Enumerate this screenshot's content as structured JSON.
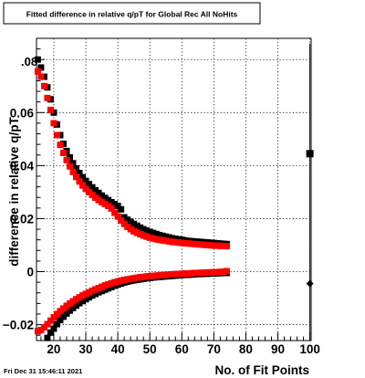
{
  "chart_data": {
    "type": "scatter",
    "title": "Fitted difference in relative q/pT for Global Rec All NoHits",
    "xlabel": "No. of Fit Points",
    "ylabel": "difference in relative q/pT",
    "xlim": [
      14.6,
      100.4
    ],
    "ylim": [
      -0.026,
      0.088
    ],
    "x_ticks": [
      20,
      30,
      40,
      50,
      60,
      70,
      80,
      90,
      100
    ],
    "y_ticks": [
      -0.02,
      0,
      0.02,
      0.04,
      0.06,
      0.08
    ],
    "y_tick_labels": [
      "−0.02",
      "0",
      "0.02",
      "0.04",
      "0.06",
      "0.08"
    ],
    "y_top_label_fragment": ".08",
    "grid": true,
    "timestamp": "Fri Dec 31 15:46:11 2021",
    "series": [
      {
        "color": "#000000",
        "upper_x": [
          15,
          16,
          17,
          18,
          19,
          20,
          21,
          22,
          23,
          24,
          25,
          26,
          27,
          28,
          29,
          30,
          31,
          32,
          33,
          34,
          35,
          36,
          37,
          38,
          39,
          40,
          41,
          42,
          43,
          44,
          45,
          46,
          47,
          48,
          49,
          50,
          51,
          52,
          53,
          54,
          55,
          56,
          57,
          58,
          59,
          60,
          61,
          62,
          63,
          64,
          65,
          66,
          67,
          68,
          69,
          70,
          71,
          72,
          73,
          74
        ],
        "upper_y": [
          0.08,
          0.077,
          0.0735,
          0.0695,
          0.065,
          0.06,
          0.0555,
          0.0515,
          0.0482,
          0.0455,
          0.0431,
          0.0409,
          0.0389,
          0.0372,
          0.0356,
          0.0342,
          0.033,
          0.0318,
          0.0307,
          0.0297,
          0.0287,
          0.0278,
          0.027,
          0.0262,
          0.0255,
          0.0248,
          0.0235,
          0.0205,
          0.0196,
          0.0188,
          0.018,
          0.0173,
          0.0166,
          0.016,
          0.0155,
          0.015,
          0.0146,
          0.0142,
          0.0138,
          0.0135,
          0.0132,
          0.0129,
          0.0126,
          0.0124,
          0.0122,
          0.012,
          0.0118,
          0.0116,
          0.0115,
          0.0114,
          0.0113,
          0.0112,
          0.0111,
          0.011,
          0.0109,
          0.0108,
          0.0107,
          0.0106,
          0.0105,
          0.0104
        ],
        "lower_x": [
          18,
          19,
          20,
          21,
          22,
          23,
          24,
          25,
          26,
          27,
          28,
          29,
          30,
          31,
          32,
          33,
          34,
          35,
          36,
          37,
          38,
          39,
          40,
          41,
          42,
          43,
          44,
          45,
          46,
          47,
          48,
          49,
          50,
          51,
          52,
          53,
          54,
          55,
          56,
          57,
          58,
          59,
          60,
          61,
          62,
          63,
          64,
          65,
          66,
          67,
          68,
          69,
          70,
          71,
          72,
          73,
          74
        ],
        "lower_y": [
          -0.025,
          -0.023,
          -0.0215,
          -0.0198,
          -0.0183,
          -0.017,
          -0.0158,
          -0.0147,
          -0.0137,
          -0.0128,
          -0.0119,
          -0.0111,
          -0.0104,
          -0.0097,
          -0.009,
          -0.0084,
          -0.0078,
          -0.0073,
          -0.0068,
          -0.0063,
          -0.0058,
          -0.0053,
          -0.0049,
          -0.0045,
          -0.0041,
          -0.0038,
          -0.0035,
          -0.0033,
          -0.0031,
          -0.0029,
          -0.0027,
          -0.0025,
          -0.0024,
          -0.0022,
          -0.0021,
          -0.002,
          -0.0019,
          -0.0018,
          -0.0017,
          -0.0016,
          -0.0015,
          -0.0014,
          -0.0013,
          -0.0012,
          -0.0012,
          -0.0011,
          -0.001,
          -0.0009,
          -0.0009,
          -0.0008,
          -0.0008,
          -0.0007,
          -0.0007,
          -0.0006,
          -0.0006,
          -0.0005,
          -0.0005
        ],
        "isolated_points": [
          [
            100,
            0.0445
          ],
          [
            100,
            -0.0045
          ]
        ]
      },
      {
        "color": "#ff0000",
        "upper_x": [
          15,
          16,
          17,
          18,
          19,
          20,
          21,
          22,
          23,
          24,
          25,
          26,
          27,
          28,
          29,
          30,
          31,
          32,
          33,
          34,
          35,
          36,
          37,
          38,
          39,
          40,
          41,
          42,
          43,
          44,
          45,
          46,
          47,
          48,
          49,
          50,
          51,
          52,
          53,
          54,
          55,
          56,
          57,
          58,
          59,
          60,
          61,
          62,
          63,
          64,
          65,
          66,
          67,
          68,
          69,
          70,
          71,
          72,
          73,
          74
        ],
        "upper_y": [
          0.0755,
          0.0735,
          0.07,
          0.0655,
          0.061,
          0.056,
          0.0515,
          0.0478,
          0.0448,
          0.0421,
          0.0397,
          0.0376,
          0.0357,
          0.034,
          0.0325,
          0.0312,
          0.03,
          0.0289,
          0.0279,
          0.027,
          0.0262,
          0.0255,
          0.0248,
          0.0238,
          0.0222,
          0.0208,
          0.0193,
          0.018,
          0.0169,
          0.016,
          0.0152,
          0.0146,
          0.0141,
          0.0136,
          0.0132,
          0.0128,
          0.0125,
          0.0122,
          0.012,
          0.0118,
          0.0116,
          0.0114,
          0.0112,
          0.0111,
          0.011,
          0.0108,
          0.0107,
          0.0106,
          0.0105,
          0.0104,
          0.0103,
          0.0102,
          0.0101,
          0.01,
          0.0099,
          0.0098,
          0.0098,
          0.0097,
          0.0097,
          0.0096
        ],
        "lower_x": [
          15,
          16,
          17,
          18,
          19,
          20,
          21,
          22,
          23,
          24,
          25,
          26,
          27,
          28,
          29,
          30,
          31,
          32,
          33,
          34,
          35,
          36,
          37,
          38,
          39,
          40,
          41,
          42,
          43,
          44,
          45,
          46,
          47,
          48,
          49,
          50,
          51,
          52,
          53,
          54,
          55,
          56,
          57,
          58,
          59,
          60,
          61,
          62,
          63,
          64,
          65,
          66,
          67,
          68,
          69,
          70,
          71,
          72,
          73,
          74
        ],
        "lower_y": [
          -0.0225,
          -0.022,
          -0.021,
          -0.0198,
          -0.0185,
          -0.0172,
          -0.016,
          -0.0149,
          -0.0139,
          -0.0129,
          -0.012,
          -0.0112,
          -0.0104,
          -0.0097,
          -0.009,
          -0.0084,
          -0.0078,
          -0.0072,
          -0.0067,
          -0.0062,
          -0.0057,
          -0.0052,
          -0.0048,
          -0.0044,
          -0.004,
          -0.0037,
          -0.0034,
          -0.0031,
          -0.0029,
          -0.0027,
          -0.0025,
          -0.0023,
          -0.0021,
          -0.002,
          -0.0018,
          -0.0017,
          -0.0016,
          -0.0015,
          -0.0014,
          -0.0013,
          -0.0012,
          -0.0011,
          -0.001,
          -0.0009,
          -0.0009,
          -0.0008,
          -0.0007,
          -0.0007,
          -0.0006,
          -0.0005,
          -0.0005,
          -0.0004,
          -0.0004,
          -0.0003,
          -0.0003,
          -0.0002,
          -0.0002,
          -0.0001,
          0.0,
          0.0002
        ]
      }
    ]
  }
}
